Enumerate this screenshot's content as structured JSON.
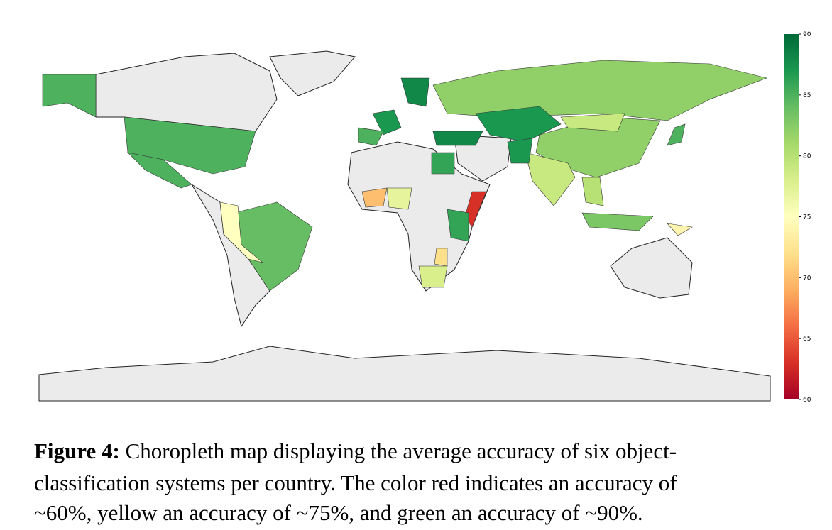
{
  "chart_data": {
    "type": "choropleth",
    "colormap": "RdYlGn",
    "colorbar": {
      "lim": [
        60,
        90
      ],
      "ticks": [
        60,
        65,
        70,
        75,
        80,
        85,
        90
      ]
    },
    "regions": [
      {
        "value": 85
      },
      {
        "value": 85
      },
      {
        "value": 85
      },
      {
        "value": 84
      },
      {
        "value": 75
      },
      {
        "value": 82
      },
      {
        "value": 87
      },
      {
        "value": 82
      },
      {
        "value": 79
      },
      {
        "value": 79
      },
      {
        "value": 87
      },
      {
        "value": 88
      },
      {
        "value": 86
      },
      {
        "value": 87
      },
      {
        "value": 85
      },
      {
        "value": 88
      },
      {
        "value": 63
      },
      {
        "value": 86
      },
      {
        "value": 77
      },
      {
        "value": 70
      },
      {
        "value": 78
      },
      {
        "value": 72
      },
      {
        "value": 83
      },
      {
        "value": 80
      },
      {
        "value": 85
      },
      {
        "value": 74
      }
    ]
  },
  "caption": {
    "label": "Figure 4:",
    "lines": [
      "Choropleth map displaying the average accuracy of six object-",
      "classification systems per country.  The color red indicates an accuracy of",
      "~60%, yellow an accuracy of ~75%, and green an accuracy of ~90%."
    ]
  }
}
